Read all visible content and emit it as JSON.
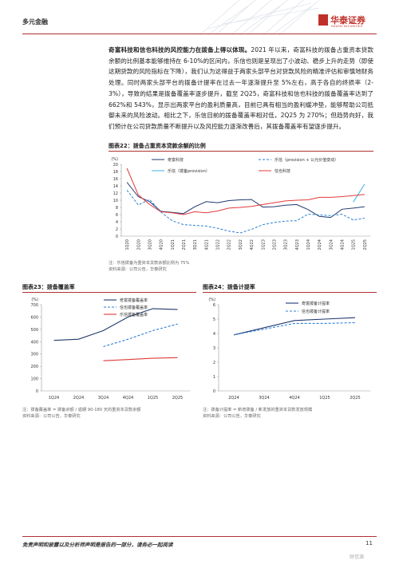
{
  "header": {
    "section": "多元金融",
    "brand_cn": "华泰证券",
    "brand_en": "HUATAI SECURITIES"
  },
  "paragraph": {
    "lead": "奇富科技和信也科技的风控能力在拨备上得以体现。",
    "body": "2021 年以来，奇富科技的拨备占重资本贷款余额的比例基本能够维持在 6-10%的区间内，乐信也则是呈现出了小波动、稳步上升的走势（即使这期贷款的风险指标在下降），我们认为这得益于两家头部平台对贷款风险的精准评估和审慎地财务处理。同时两家头部平台的拨备计提率在过去一年逐渐提升至 5%左右，高于各自的终损率（2-3%），导致的结果是拨备覆盖率逐步提升，截至 2Q25，奇富科技和信也科技的拨备覆盖率达到了 662%和 543%，显示出两家平台的盈利质量高，目前已具有相当的盈利缓冲垫，能够帮助公司抵御未来的风险波动。相比之下，乐信目前的拨备覆盖率相对低，2Q25 为 270%；但趋势向好，我们预计在公司贷款质量不断提升以及风控能力逐渐改善后，其拨备覆盖率有望逐步提升。"
  },
  "fig22": {
    "title": "图表22：拨备占重资本贷款余额的比例",
    "note1": "注：乐信拨备为重资本贷款余额比例为 75%",
    "source": "资料来源：公司公告，华泰研究"
  },
  "fig23": {
    "title": "图表23：拨备覆盖率",
    "note1": "注：拨备覆盖率 = 拨备余额 / 逾期 90-180 天的重资本贷款余额",
    "source": "资料来源：公司公告，华泰研究"
  },
  "fig24": {
    "title": "图表24：拨备计提率",
    "note1": "注：拨备计提率 = 新增拨备 / 新发放的重资本贷款发放规模",
    "source": "资料来源：公司公告，华泰研究"
  },
  "footer": {
    "disclaimer": "免责声明和披露以及分析师声明是报告的一部分，请务必一起阅读",
    "page": "11",
    "watermark": "财信源"
  },
  "chart_data": [
    {
      "type": "line",
      "ylabel": "(%)",
      "ylim": [
        0,
        20
      ],
      "yticks": [
        0,
        2,
        4,
        6,
        8,
        10,
        12,
        14,
        16,
        18,
        20
      ],
      "categories": [
        "1Q20",
        "2Q20",
        "3Q20",
        "4Q20",
        "1Q21",
        "2Q21",
        "3Q21",
        "4Q21",
        "1Q22",
        "2Q22",
        "3Q22",
        "4Q22",
        "1Q23",
        "2Q23",
        "3Q23",
        "4Q23",
        "1Q24",
        "2Q24",
        "3Q24",
        "4Q24",
        "1Q25",
        "2Q25"
      ],
      "legend_position": "top",
      "series": [
        {
          "name": "奇富科技",
          "color": "#1f3a6e",
          "dash": "solid",
          "values": [
            15.0,
            11.0,
            9.6,
            6.9,
            6.6,
            6.3,
            8.2,
            9.6,
            9.3,
            9.9,
            10.1,
            10.2,
            8.1,
            8.2,
            8.6,
            8.8,
            7.4,
            5.5,
            5.2,
            7.5,
            7.8,
            8.2
          ]
        },
        {
          "name": "乐信（provision + 公允价值变动）",
          "color": "#2a7fd4",
          "dash": "dashed",
          "values": [
            12.8,
            8.7,
            10.2,
            6.7,
            4.3,
            3.2,
            3.0,
            2.8,
            2.2,
            1.4,
            0.9,
            1.9,
            3.2,
            3.8,
            4.2,
            4.3,
            6.1,
            5.9,
            5.7,
            6.1,
            4.5,
            5.0
          ]
        },
        {
          "name": "乐信（拨备provision）",
          "color": "#3fb2e6",
          "dash": "solid",
          "values": [
            null,
            null,
            null,
            null,
            null,
            null,
            null,
            null,
            null,
            null,
            null,
            null,
            null,
            null,
            null,
            null,
            null,
            null,
            null,
            null,
            9.5,
            14.5
          ]
        },
        {
          "name": "信也科技",
          "color": "#e03a3a",
          "dash": "solid",
          "values": [
            18.9,
            11.5,
            8.8,
            6.8,
            6.5,
            6.0,
            6.8,
            6.5,
            7.0,
            7.8,
            8.0,
            8.3,
            8.8,
            9.3,
            9.8,
            10.0,
            10.1,
            10.8,
            10.8,
            11.0,
            11.3,
            11.6
          ]
        }
      ]
    },
    {
      "type": "line",
      "ylabel": "(%)",
      "ylim": [
        0,
        700
      ],
      "yticks": [
        0,
        100,
        200,
        300,
        400,
        500,
        600,
        700
      ],
      "categories": [
        "1Q24",
        "2Q24",
        "3Q24",
        "4Q24",
        "1Q25",
        "2Q25"
      ],
      "legend_position": "top-right",
      "series": [
        {
          "name": "奇富拨备覆盖率",
          "color": "#1f3a6e",
          "dash": "solid",
          "values": [
            410,
            420,
            490,
            600,
            668,
            662
          ]
        },
        {
          "name": "信也拨备覆盖率",
          "color": "#2a7fd4",
          "dash": "dashed",
          "values": [
            null,
            null,
            360,
            420,
            490,
            543
          ]
        },
        {
          "name": "乐信拨备覆盖率",
          "color": "#e03a3a",
          "dash": "solid",
          "values": [
            null,
            null,
            245,
            255,
            265,
            270
          ]
        }
      ]
    },
    {
      "type": "line",
      "ylabel": "(%)",
      "ylim": [
        0,
        6
      ],
      "yticks": [
        0,
        1,
        2,
        3,
        4,
        5,
        6
      ],
      "categories": [
        "2Q24",
        "3Q24",
        "4Q24",
        "1Q25",
        "2Q25"
      ],
      "legend_position": "top-right",
      "series": [
        {
          "name": "奇富拨备计提率",
          "color": "#1f3a6e",
          "dash": "solid",
          "values": [
            3.9,
            4.4,
            4.9,
            5.0,
            5.1
          ]
        },
        {
          "name": "信也拨备计提率",
          "color": "#2a7fd4",
          "dash": "dashed",
          "values": [
            3.9,
            4.3,
            4.7,
            4.7,
            4.75
          ]
        }
      ]
    }
  ]
}
